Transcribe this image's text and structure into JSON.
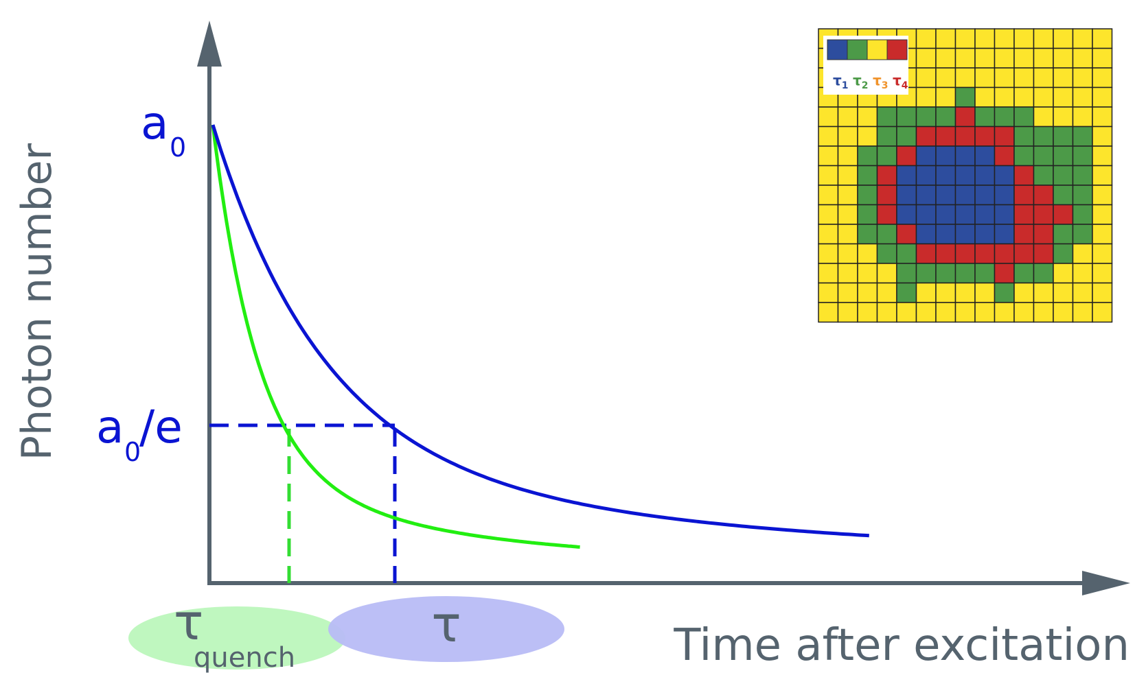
{
  "colors": {
    "axis": "#55636e",
    "text_gray": "#55636e",
    "blue": "#0a14d2",
    "green": "#22ee11",
    "green_dash": "#33dd33",
    "blue_ellipse": "#b8bcf5",
    "green_ellipse": "#bff7bf",
    "grid_yellow": "#fde52c",
    "grid_green": "#4c9a48",
    "grid_red": "#c92b2b",
    "grid_blue": "#2d4d9e",
    "tau3_orange": "#f0932b"
  },
  "labels": {
    "y_axis": "Photon number",
    "x_axis": "Time after excitation",
    "a0_base": "a",
    "a0_sub": "0",
    "a0e_base": "a",
    "a0e_sub": "0",
    "a0e_suffix": "/e",
    "tau_quench_base": "τ",
    "tau_quench_sub": "quench",
    "tau": "τ"
  },
  "inset": {
    "legend": [
      {
        "symbol": "τ",
        "sub": "1",
        "color": "#2d4d9e"
      },
      {
        "symbol": "τ",
        "sub": "2",
        "color": "#4c9a48"
      },
      {
        "symbol": "τ",
        "sub": "3",
        "color": "#f0932b"
      },
      {
        "symbol": "τ",
        "sub": "4",
        "color": "#c92b2b"
      }
    ],
    "grid": [
      "YYYYYYYYYYYYYYY",
      "YYYYYYYYYYYYYYY",
      "YYYYYYYYYYYYYYY",
      "YYYYYYYGYYYYYYY",
      "YYYGGGGRGGGYYYY",
      "YYYGGRRRRRGGGGY",
      "YYGGRBBBBRGGGGY",
      "YYGRBBBBBBRGGGY",
      "YYGRBBBBBBRRGGY",
      "YYGRBBBBBBRRRGY",
      "YYGGRBBBBBRRGGY",
      "YYYGGRRRRRRRGYY",
      "YYYYGGGGGRGGYYY",
      "YYYYGYYYYGYYYYY",
      "YYYYYYYYYYYYYYY"
    ]
  },
  "chart_data": {
    "type": "line",
    "title": "",
    "xlabel": "Time after excitation",
    "ylabel": "Photon number",
    "series": [
      {
        "name": "τ",
        "color": "#0a14d2",
        "a0": 1.0,
        "tau": 1.0,
        "t_end": 5.9
      },
      {
        "name": "τquench",
        "color": "#22ee11",
        "a0": 1.0,
        "tau": 0.4,
        "t_end": 3.3
      }
    ],
    "markers": [
      {
        "label": "a0/e",
        "value": 0.368
      }
    ]
  }
}
